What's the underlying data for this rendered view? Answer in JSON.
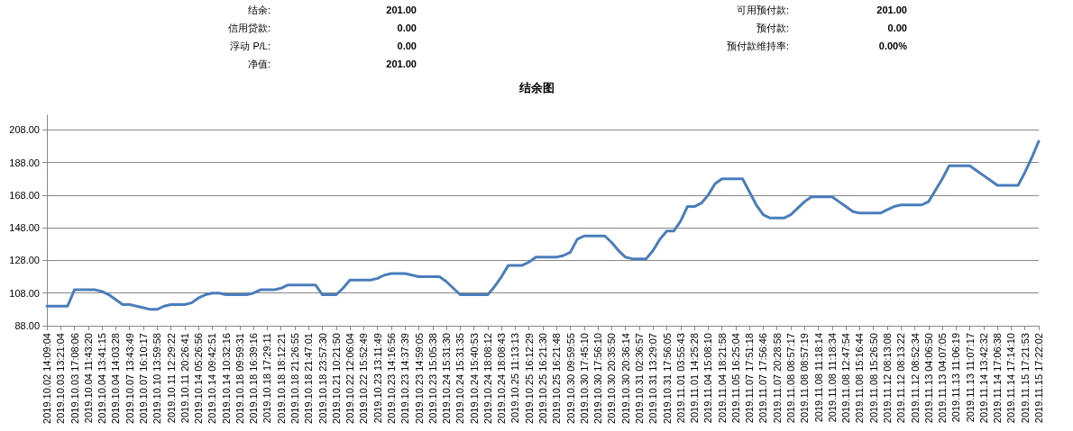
{
  "chart_data": [
    {
      "type": "other",
      "annotations": [
        "结余:",
        "201.00",
        "可用预付款:",
        "201.00",
        "信用贷款:",
        "0.00",
        "预付款:",
        "0.00",
        "浮动 P/L:",
        "0.00",
        "预付款维持率:",
        "0.00%",
        "净值:",
        "201.00"
      ]
    },
    {
      "type": "line",
      "title": "结余图",
      "color": "#4a7ebb",
      "marker": "none",
      "line_style": "solid",
      "grid": "y",
      "ylim": [
        88,
        217
      ],
      "yticks": [
        {
          "value": 88,
          "label": "88.00"
        },
        {
          "value": 108,
          "label": "108.00"
        },
        {
          "value": 128,
          "label": "128.00"
        },
        {
          "value": 148,
          "label": "148.00"
        },
        {
          "value": 168,
          "label": "168.00"
        },
        {
          "value": 188,
          "label": "188.00"
        },
        {
          "value": 208,
          "label": "208.00"
        }
      ],
      "categories": [
        "2019.10.02 14:09:04",
        null,
        "2019.10.03 13:21:04",
        null,
        "2019.10.03 17:08:06",
        null,
        "2019.10.04 11:43:20",
        null,
        "2019.10.04 13:41:15",
        null,
        "2019.10.04 14:03:28",
        null,
        "2019.10.07 13:43:49",
        null,
        "2019.10.07 16:10:17",
        null,
        "2019.10.10 13:59:58",
        null,
        "2019.10.11 12:29:22",
        null,
        "2019.10.11 20:26:41",
        null,
        "2019.10.14 05:26:56",
        null,
        "2019.10.14 09:42:51",
        null,
        "2019.10.14 10:32:16",
        null,
        "2019.10.18 09:59:31",
        null,
        "2019.10.18 16:39:16",
        null,
        "2019.10.18 17:29:11",
        null,
        "2019.10.18 18:12:21",
        null,
        "2019.10.18 21:26:55",
        null,
        "2019.10.18 21:47:01",
        null,
        "2019.10.18 23:57:30",
        null,
        "2019.10.21 10:21:50",
        null,
        "2019.10.22 12:06:04",
        null,
        "2019.10.22 15:52:49",
        null,
        "2019.10.23 13:11:49",
        null,
        "2019.10.23 14:16:56",
        null,
        "2019.10.23 14:37:39",
        null,
        "2019.10.23 14:59:05",
        null,
        "2019.10.23 15:05:38",
        null,
        "2019.10.24 15:31:30",
        null,
        "2019.10.24 15:31:35",
        null,
        "2019.10.24 15:40:53",
        null,
        "2019.10.24 18:08:12",
        null,
        "2019.10.24 18:08:43",
        null,
        "2019.10.25 11:13:13",
        null,
        "2019.10.25 16:12:29",
        null,
        "2019.10.25 16:21:30",
        null,
        "2019.10.25 16:21:48",
        null,
        "2019.10.30 09:59:55",
        null,
        "2019.10.30 17:45:10",
        null,
        "2019.10.30 17:56:10",
        null,
        "2019.10.30 20:35:50",
        null,
        "2019.10.30 20:36:14",
        null,
        "2019.10.31 02:36:57",
        null,
        "2019.10.31 13:29:07",
        null,
        "2019.10.31 17:56:05",
        null,
        "2019.11.01 03:55:43",
        null,
        "2019.11.01 14:25:28",
        null,
        "2019.11.04 15:08:10",
        null,
        "2019.11.04 18:21:58",
        null,
        "2019.11.05 16:25:04",
        null,
        "2019.11.07 17:51:18",
        null,
        "2019.11.07 17:56:46",
        null,
        "2019.11.07 20:28:58",
        null,
        "2019.11.08 08:57:17",
        null,
        "2019.11.08 08:57:19",
        null,
        "2019.11.08 11:18:14",
        null,
        "2019.11.08 11:18:34",
        null,
        "2019.11.08 12:47:54",
        null,
        "2019.11.08 15:16:44",
        null,
        "2019.11.08 15:26:50",
        null,
        "2019.11.12 08:13:08",
        null,
        "2019.11.12 08:13:22",
        null,
        "2019.11.12 08:52:34",
        null,
        "2019.11.13 04:06:50",
        null,
        "2019.11.13 04:07:05",
        null,
        "2019.11.13 11:06:19",
        null,
        "2019.11.13 11:07:17",
        null,
        "2019.11.14 13:42:32",
        null,
        "2019.11.14 17:06:38",
        null,
        "2019.11.14 17:14:10",
        null,
        "2019.11.15 17:21:53",
        null,
        "2019.11.15 17:22:02"
      ],
      "values": [
        100,
        100,
        100,
        100,
        110,
        110,
        110,
        110,
        109,
        107,
        104,
        101,
        101,
        100,
        99,
        98,
        98,
        100,
        101,
        101,
        101,
        102,
        105,
        107,
        108,
        108,
        107,
        107,
        107,
        107,
        108,
        110,
        110,
        110,
        111,
        113,
        113,
        113,
        113,
        113,
        107,
        107,
        107,
        111,
        116,
        116,
        116,
        116,
        117,
        119,
        120,
        120,
        120,
        119,
        118,
        118,
        118,
        118,
        115,
        111,
        107,
        107,
        107,
        107,
        107,
        112,
        118,
        125,
        125,
        125,
        127,
        130,
        130,
        130,
        130,
        131,
        133,
        141,
        143,
        143,
        143,
        143,
        139,
        134,
        130,
        129,
        129,
        129,
        134,
        141,
        146,
        146,
        152,
        161,
        161,
        163,
        168,
        175,
        178,
        178,
        178,
        178,
        170,
        162,
        156,
        154,
        154,
        154,
        156,
        160,
        164,
        167,
        167,
        167,
        167,
        164,
        161,
        158,
        157,
        157,
        157,
        157,
        159,
        161,
        162,
        162,
        162,
        162,
        164,
        171,
        178,
        186,
        186,
        186,
        186,
        183,
        180,
        177,
        174,
        174,
        174,
        174,
        182,
        191,
        201
      ]
    }
  ]
}
